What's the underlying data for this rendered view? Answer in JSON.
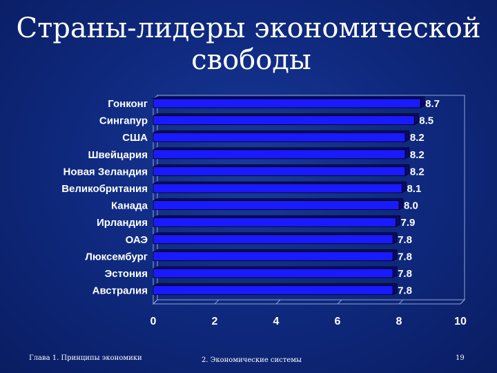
{
  "slide": {
    "title_line1": "Страны-лидеры экономической",
    "title_line2": "свободы",
    "footer_left": "Глава 1. Принципы экономики",
    "footer_mid": "2. Экономические системы",
    "page_number": "19"
  },
  "colors": {
    "background": "#0f2a80",
    "bar": "#1a1aff",
    "bar_dark": "#0a0a66",
    "text": "#ffffff"
  },
  "chart_data": {
    "type": "bar",
    "orientation": "horizontal",
    "categories": [
      "Гонконг",
      "Сингапур",
      "США",
      "Швейцария",
      "Новая Зеландия",
      "Великобритания",
      "Канада",
      "Ирландия",
      "ОАЭ",
      "Люксембург",
      "Эстония",
      "Австралия"
    ],
    "values": [
      8.7,
      8.5,
      8.2,
      8.2,
      8.2,
      8.1,
      8.0,
      7.9,
      7.8,
      7.8,
      7.8,
      7.8
    ],
    "value_labels": [
      "8.7",
      "8.5",
      "8.2",
      "8.2",
      "8.2",
      "8.1",
      "8.0",
      "7.9",
      "7.8",
      "7.8",
      "7.8",
      "7.8"
    ],
    "x_ticks": [
      "0",
      "2",
      "4",
      "6",
      "8",
      "10"
    ],
    "xlim": [
      0,
      10
    ],
    "grid": false,
    "legend": "none"
  }
}
